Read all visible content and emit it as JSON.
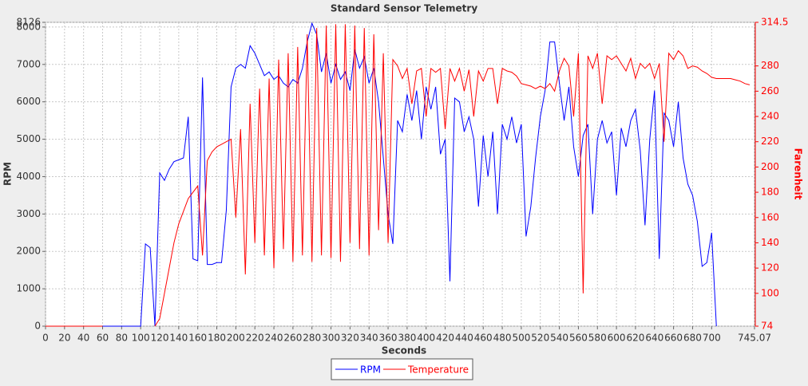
{
  "chart_data": {
    "type": "line",
    "title": "Standard Sensor Telemetry",
    "x_label": "Seconds",
    "y_label": "RPM",
    "y2_label": "Farenheit",
    "x": [
      0,
      5,
      10,
      15,
      20,
      25,
      30,
      35,
      40,
      45,
      50,
      55,
      60,
      65,
      70,
      75,
      80,
      85,
      90,
      95,
      100,
      105,
      110,
      115,
      120,
      125,
      130,
      135,
      140,
      145,
      150,
      155,
      160,
      165,
      170,
      175,
      180,
      185,
      190,
      195,
      200,
      205,
      210,
      215,
      220,
      225,
      230,
      235,
      240,
      245,
      250,
      255,
      260,
      265,
      270,
      275,
      280,
      285,
      290,
      295,
      300,
      305,
      310,
      315,
      320,
      325,
      330,
      335,
      340,
      345,
      350,
      355,
      360,
      365,
      370,
      375,
      380,
      385,
      390,
      395,
      400,
      405,
      410,
      415,
      420,
      425,
      430,
      435,
      440,
      445,
      450,
      455,
      460,
      465,
      470,
      475,
      480,
      485,
      490,
      495,
      500,
      505,
      510,
      515,
      520,
      525,
      530,
      535,
      540,
      545,
      550,
      555,
      560,
      565,
      570,
      575,
      580,
      585,
      590,
      595,
      600,
      605,
      610,
      615,
      620,
      625,
      630,
      635,
      640,
      645,
      650,
      655,
      660,
      665,
      670,
      675,
      680,
      685,
      690,
      695,
      700,
      705,
      710,
      715,
      720,
      725,
      730,
      735,
      740,
      745
    ],
    "series": [
      {
        "name": "RPM",
        "color": "#0000ff",
        "values": [
          0,
          0,
          0,
          0,
          0,
          0,
          0,
          0,
          0,
          0,
          0,
          0,
          0,
          0,
          0,
          0,
          0,
          0,
          0,
          0,
          0,
          2200,
          2100,
          0,
          4100,
          3900,
          4200,
          4400,
          4450,
          4500,
          5600,
          1800,
          1750,
          6650,
          1650,
          1650,
          1700,
          1700,
          3100,
          6400,
          6900,
          7000,
          6900,
          7500,
          7300,
          7000,
          6700,
          6800,
          6600,
          6700,
          6500,
          6400,
          6600,
          6500,
          6900,
          7600,
          8100,
          7800,
          6800,
          7300,
          6500,
          7000,
          6600,
          6800,
          6300,
          7400,
          6900,
          7200,
          6500,
          6900,
          6000,
          4500,
          3000,
          2200,
          5500,
          5200,
          6200,
          5500,
          6300,
          5000,
          6400,
          5800,
          6400,
          4600,
          5000,
          1200,
          6100,
          6000,
          5200,
          5600,
          5000,
          3200,
          5100,
          4000,
          5200,
          3000,
          5400,
          5000,
          5600,
          4900,
          5400,
          2400,
          3200,
          4500,
          5600,
          6300,
          7600,
          7600,
          6500,
          5500,
          6400,
          4800,
          4000,
          5100,
          5400,
          3000,
          5000,
          5500,
          4900,
          5200,
          3500,
          5300,
          4800,
          5500,
          5800,
          4700,
          2700,
          5000,
          6300,
          1800,
          5700,
          5500,
          4800,
          6000,
          4500,
          3800,
          3500,
          2800,
          1600,
          1700,
          2500,
          0,
          null,
          null,
          null,
          null,
          null,
          null,
          null,
          null
        ]
      },
      {
        "name": "Temperature",
        "color": "#ff0000",
        "axis": "y2",
        "values": [
          74,
          74,
          74,
          74,
          74,
          74,
          74,
          74,
          74,
          74,
          74,
          74,
          74,
          null,
          null,
          null,
          null,
          null,
          null,
          null,
          null,
          null,
          null,
          74,
          80,
          100,
          120,
          140,
          155,
          165,
          175,
          180,
          185,
          130,
          205,
          212,
          216,
          218,
          220,
          222,
          160,
          230,
          115,
          250,
          140,
          262,
          130,
          270,
          120,
          285,
          135,
          290,
          125,
          295,
          130,
          305,
          125,
          310,
          130,
          312,
          128,
          313,
          125,
          313,
          140,
          312,
          135,
          310,
          130,
          305,
          150,
          290,
          140,
          285,
          280,
          270,
          278,
          250,
          276,
          278,
          240,
          278,
          275,
          278,
          230,
          278,
          268,
          278,
          260,
          277,
          240,
          276,
          268,
          278,
          278,
          250,
          278,
          276,
          275,
          272,
          266,
          265,
          264,
          262,
          264,
          262,
          266,
          260,
          276,
          286,
          280,
          240,
          290,
          100,
          288,
          278,
          290,
          250,
          288,
          285,
          288,
          282,
          276,
          286,
          270,
          282,
          278,
          282,
          270,
          282,
          220,
          290,
          285,
          292,
          288,
          278,
          280,
          279,
          276,
          274,
          271,
          270,
          270,
          270,
          270,
          269,
          268,
          266,
          265,
          null
        ]
      }
    ],
    "xlim": [
      0,
      745.07
    ],
    "xticks": [
      0,
      20,
      40,
      60,
      80,
      100,
      120,
      140,
      160,
      180,
      200,
      220,
      240,
      260,
      280,
      300,
      320,
      340,
      360,
      380,
      400,
      420,
      440,
      460,
      480,
      500,
      520,
      540,
      560,
      580,
      600,
      620,
      640,
      660,
      680,
      700,
      745.07
    ],
    "ylim": [
      0,
      8126
    ],
    "yticks": [
      0,
      1000,
      2000,
      3000,
      4000,
      5000,
      6000,
      7000,
      8000,
      8126
    ],
    "y2lim": [
      74,
      314.5
    ],
    "y2ticks": [
      74,
      100,
      120,
      140,
      160,
      180,
      200,
      220,
      240,
      260,
      280,
      314.5
    ],
    "grid": true
  }
}
